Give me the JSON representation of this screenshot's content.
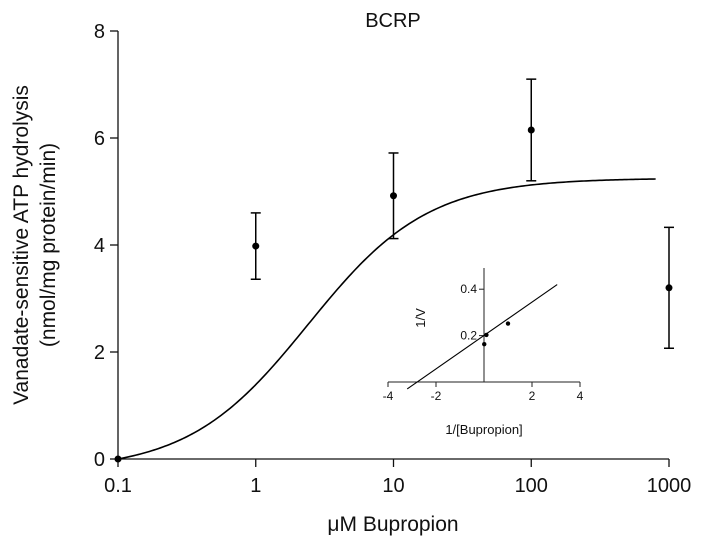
{
  "chart_data": [
    {
      "type": "scatter",
      "title": "BCRP",
      "xlabel": "μM Bupropion",
      "ylabel": [
        "Vanadate-sensitive ATP hydrolysis",
        "(nmol/mg protein/min)"
      ],
      "x_scale": "log",
      "xlim": [
        0.1,
        1000
      ],
      "ylim": [
        0,
        8
      ],
      "x_ticks": [
        "0.1",
        "1",
        "10",
        "100",
        "1000"
      ],
      "x_tick_values": [
        0.1,
        1,
        10,
        100,
        1000
      ],
      "y_ticks": [
        "0",
        "2",
        "4",
        "6",
        "8"
      ],
      "y_tick_values": [
        0,
        2,
        4,
        6,
        8
      ],
      "grid": false,
      "series": [
        {
          "points": [
            {
              "x": 0.1,
              "y": 0.0,
              "err": 0
            },
            {
              "x": 1,
              "y": 3.98,
              "err": 0.62
            },
            {
              "x": 10,
              "y": 4.92,
              "err": 0.8
            },
            {
              "x": 100,
              "y": 6.15,
              "err": 0.95
            },
            {
              "x": 1000,
              "y": 3.2,
              "err": 1.13
            }
          ]
        }
      ],
      "fit_curve": {
        "model": "michaelis-menten",
        "vmax": 5.25,
        "km": 2.5,
        "x_offset": 0.1,
        "x_end": 800
      }
    },
    {
      "type": "line",
      "name": "inset",
      "xlabel": "1/[Bupropion]",
      "ylabel": "1/V",
      "xlim": [
        -4,
        4
      ],
      "ylim": [
        -0.05,
        0.5
      ],
      "x_ticks": [
        "-4",
        "-2",
        "2",
        "4"
      ],
      "x_tick_values": [
        -4,
        -2,
        2,
        4
      ],
      "y_ticks": [
        "0.2",
        "0.4"
      ],
      "y_tick_values": [
        0.2,
        0.4
      ],
      "points": [
        {
          "x": 0.01,
          "y": 0.163
        },
        {
          "x": 0.1,
          "y": 0.203
        },
        {
          "x": 1.0,
          "y": 0.252
        }
      ],
      "line": {
        "x": [
          -3.2,
          3.05
        ],
        "y": [
          -0.03,
          0.42
        ]
      }
    }
  ]
}
